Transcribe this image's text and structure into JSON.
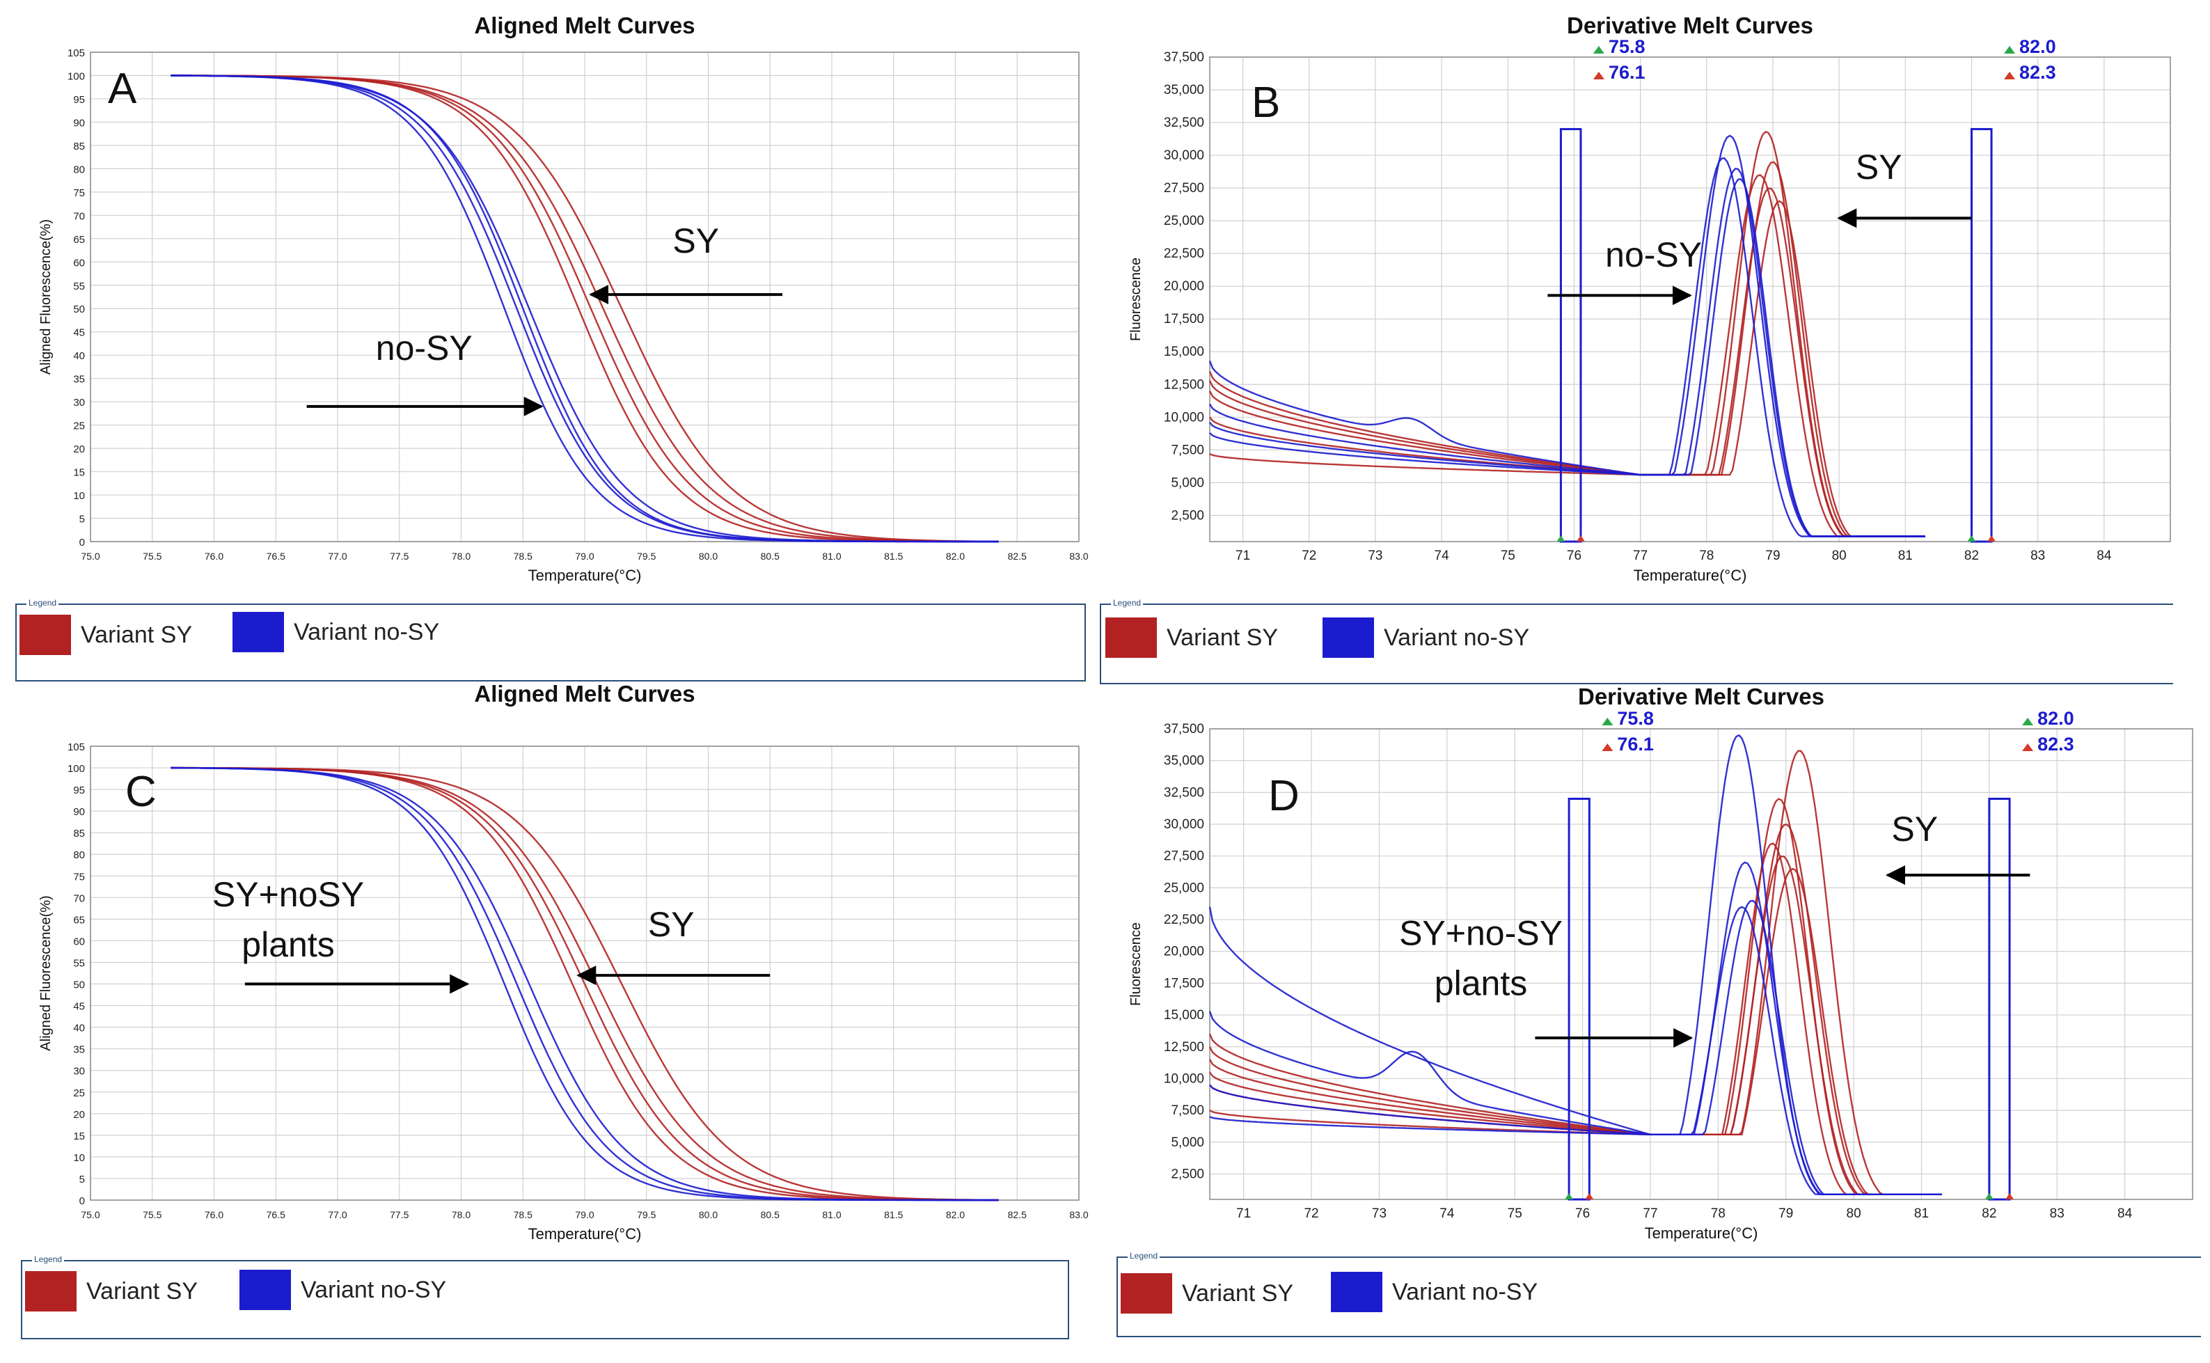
{
  "colors": {
    "sy": "#b22222",
    "nosy": "#1c1ccf",
    "arrow": "#000000",
    "grid": "#d0d0d0",
    "marker": "#1c1ccf",
    "legend_border": "#2a4f7a"
  },
  "legend": {
    "caption": "Legend",
    "sy_label": "Variant SY",
    "nosy_label": "Variant no-SY"
  },
  "chart_data": [
    {
      "id": "A",
      "type": "line",
      "title": "Aligned Melt Curves",
      "panel_letter": "A",
      "xlabel": "Temperature(°C)",
      "ylabel": "Aligned Fluorescence(%)",
      "xlim": [
        75,
        83
      ],
      "ylim": [
        0,
        105
      ],
      "xticks": [
        "75.0",
        "75.5",
        "76.0",
        "76.5",
        "77.0",
        "77.5",
        "78.0",
        "78.5",
        "79.0",
        "79.5",
        "80.0",
        "80.5",
        "81.0",
        "81.5",
        "82.0",
        "82.5",
        "83.0"
      ],
      "yticks": [
        "0",
        "5",
        "10",
        "15",
        "20",
        "25",
        "30",
        "35",
        "40",
        "45",
        "50",
        "55",
        "60",
        "65",
        "70",
        "75",
        "80",
        "85",
        "90",
        "95",
        "100",
        "105"
      ],
      "series": [
        {
          "name": "Variant SY",
          "group": "sy",
          "tm": 79.05,
          "k": 2.45
        },
        {
          "name": "Variant SY",
          "group": "sy",
          "tm": 79.15,
          "k": 2.35
        },
        {
          "name": "Variant SY",
          "group": "sy",
          "tm": 78.95,
          "k": 2.55
        },
        {
          "name": "Variant SY",
          "group": "sy",
          "tm": 79.3,
          "k": 2.3
        },
        {
          "name": "Variant no-SY",
          "group": "nosy",
          "tm": 78.45,
          "k": 2.7
        },
        {
          "name": "Variant no-SY",
          "group": "nosy",
          "tm": 78.55,
          "k": 2.6
        },
        {
          "name": "Variant no-SY",
          "group": "nosy",
          "tm": 78.35,
          "k": 2.8
        },
        {
          "name": "Variant no-SY",
          "group": "nosy",
          "tm": 78.5,
          "k": 2.75
        }
      ],
      "annotations": [
        {
          "lines": [
            "SY"
          ],
          "x": 79.9,
          "y": 62,
          "arrow": {
            "x1": 80.6,
            "y1": 53,
            "x2": 79.05,
            "y2": 53
          }
        },
        {
          "lines": [
            "no-SY"
          ],
          "x": 77.7,
          "y": 39,
          "arrow": {
            "x1": 76.75,
            "y1": 29,
            "x2": 78.65,
            "y2": 29
          }
        }
      ]
    },
    {
      "id": "B",
      "type": "line",
      "title": "Derivative Melt Curves",
      "panel_letter": "B",
      "xlabel": "Temperature(°C)",
      "ylabel": "Fluorescence",
      "xlim": [
        70.5,
        85
      ],
      "ylim": [
        500,
        37500
      ],
      "xticks": [
        "71",
        "72",
        "73",
        "74",
        "75",
        "76",
        "77",
        "78",
        "79",
        "80",
        "81",
        "82",
        "83",
        "84"
      ],
      "yticks": [
        "2,500",
        "5,000",
        "7,500",
        "10,000",
        "12,500",
        "15,000",
        "17,500",
        "20,000",
        "22,500",
        "25,000",
        "27,500",
        "30,000",
        "32,500",
        "35,000",
        "37,500"
      ],
      "markers": [
        {
          "green": "75.8",
          "red": "76.1",
          "x1": 75.8,
          "x2": 76.1
        },
        {
          "green": "82.0",
          "red": "82.3",
          "x1": 82.0,
          "x2": 82.3
        }
      ],
      "series": [
        {
          "name": "Variant SY",
          "group": "sy",
          "peak": 31800,
          "center": 78.9,
          "width": 0.62,
          "base": 13500
        },
        {
          "name": "Variant SY",
          "group": "sy",
          "peak": 29500,
          "center": 79.0,
          "width": 0.6,
          "base": 12800
        },
        {
          "name": "Variant SY",
          "group": "sy",
          "peak": 28500,
          "center": 78.8,
          "width": 0.63,
          "base": 12000
        },
        {
          "name": "Variant SY",
          "group": "sy",
          "peak": 26500,
          "center": 79.1,
          "width": 0.58,
          "base": 10000
        },
        {
          "name": "Variant SY",
          "group": "sy",
          "peak": 27500,
          "center": 78.95,
          "width": 0.6,
          "base": 7200
        },
        {
          "name": "Variant no-SY",
          "group": "nosy",
          "peak": 31500,
          "center": 78.35,
          "width": 0.64,
          "base": 14300,
          "bump": 11000
        },
        {
          "name": "Variant no-SY",
          "group": "nosy",
          "peak": 29800,
          "center": 78.25,
          "width": 0.62,
          "base": 11000
        },
        {
          "name": "Variant no-SY",
          "group": "nosy",
          "peak": 29000,
          "center": 78.45,
          "width": 0.6,
          "base": 9600
        },
        {
          "name": "Variant no-SY",
          "group": "nosy",
          "peak": 28200,
          "center": 78.5,
          "width": 0.58,
          "base": 8800
        }
      ],
      "annotations": [
        {
          "lines": [
            "SY"
          ],
          "x": 80.6,
          "y": 28200,
          "arrow": {
            "x1": 82.0,
            "y1": 25200,
            "x2": 80.0,
            "y2": 25200
          }
        },
        {
          "lines": [
            "no-SY"
          ],
          "x": 77.2,
          "y": 21500,
          "arrow": {
            "x1": 75.6,
            "y1": 19300,
            "x2": 77.75,
            "y2": 19300
          }
        }
      ]
    },
    {
      "id": "C",
      "type": "line",
      "title": "Aligned Melt Curves",
      "panel_letter": "C",
      "xlabel": "Temperature(°C)",
      "ylabel": "Aligned Fluorescence(%)",
      "xlim": [
        75,
        83
      ],
      "ylim": [
        0,
        105
      ],
      "xticks": [
        "75.0",
        "75.5",
        "76.0",
        "76.5",
        "77.0",
        "77.5",
        "78.0",
        "78.5",
        "79.0",
        "79.5",
        "80.0",
        "80.5",
        "81.0",
        "81.5",
        "82.0",
        "82.5",
        "83.0"
      ],
      "yticks": [
        "0",
        "5",
        "10",
        "15",
        "20",
        "25",
        "30",
        "35",
        "40",
        "45",
        "50",
        "55",
        "60",
        "65",
        "70",
        "75",
        "80",
        "85",
        "90",
        "95",
        "100",
        "105"
      ],
      "series": [
        {
          "name": "Variant SY",
          "group": "sy",
          "tm": 79.0,
          "k": 2.45
        },
        {
          "name": "Variant SY",
          "group": "sy",
          "tm": 79.1,
          "k": 2.35
        },
        {
          "name": "Variant SY",
          "group": "sy",
          "tm": 78.9,
          "k": 2.55
        },
        {
          "name": "Variant SY",
          "group": "sy",
          "tm": 79.3,
          "k": 2.3
        },
        {
          "name": "Variant no-SY",
          "group": "nosy",
          "tm": 78.45,
          "k": 2.7
        },
        {
          "name": "Variant no-SY",
          "group": "nosy",
          "tm": 78.55,
          "k": 2.6
        },
        {
          "name": "Variant no-SY",
          "group": "nosy",
          "tm": 78.35,
          "k": 2.8
        }
      ],
      "annotations": [
        {
          "lines": [
            "SY"
          ],
          "x": 79.7,
          "y": 61,
          "arrow": {
            "x1": 80.5,
            "y1": 52,
            "x2": 78.95,
            "y2": 52
          }
        },
        {
          "lines": [
            "SY+noSY",
            "plants"
          ],
          "x": 76.6,
          "y": 68,
          "arrow": {
            "x1": 76.25,
            "y1": 50,
            "x2": 78.05,
            "y2": 50
          }
        }
      ]
    },
    {
      "id": "D",
      "type": "line",
      "title": "Derivative Melt Curves",
      "panel_letter": "D",
      "xlabel": "Temperature(°C)",
      "ylabel": "Fluorescence",
      "xlim": [
        70.5,
        85
      ],
      "ylim": [
        500,
        37500
      ],
      "xticks": [
        "71",
        "72",
        "73",
        "74",
        "75",
        "76",
        "77",
        "78",
        "79",
        "80",
        "81",
        "82",
        "83",
        "84"
      ],
      "yticks": [
        "2,500",
        "5,000",
        "7,500",
        "10,000",
        "12,500",
        "15,000",
        "17,500",
        "20,000",
        "22,500",
        "25,000",
        "27,500",
        "30,000",
        "32,500",
        "35,000",
        "37,500"
      ],
      "markers": [
        {
          "green": "75.8",
          "red": "76.1",
          "x1": 75.8,
          "x2": 76.1
        },
        {
          "green": "82.0",
          "red": "82.3",
          "x1": 82.0,
          "x2": 82.3
        }
      ],
      "series": [
        {
          "name": "Variant SY",
          "group": "sy",
          "peak": 35800,
          "center": 79.2,
          "width": 0.63,
          "base": 13500
        },
        {
          "name": "Variant SY",
          "group": "sy",
          "peak": 32000,
          "center": 78.9,
          "width": 0.6,
          "base": 12500
        },
        {
          "name": "Variant SY",
          "group": "sy",
          "peak": 30000,
          "center": 79.0,
          "width": 0.62,
          "base": 11500
        },
        {
          "name": "Variant SY",
          "group": "sy",
          "peak": 28500,
          "center": 78.8,
          "width": 0.58,
          "base": 10500
        },
        {
          "name": "Variant SY",
          "group": "sy",
          "peak": 26500,
          "center": 79.1,
          "width": 0.6,
          "base": 9500
        },
        {
          "name": "Variant SY",
          "group": "sy",
          "peak": 27500,
          "center": 78.95,
          "width": 0.6,
          "base": 7500
        },
        {
          "name": "Variant no-SY",
          "group": "nosy",
          "peak": 37000,
          "center": 78.3,
          "width": 0.62,
          "base": 23500
        },
        {
          "name": "Variant no-SY",
          "group": "nosy",
          "peak": 27000,
          "center": 78.4,
          "width": 0.6,
          "base": 15300,
          "bump": 14700
        },
        {
          "name": "Variant no-SY",
          "group": "nosy",
          "peak": 24000,
          "center": 78.5,
          "width": 0.58,
          "base": 9500
        },
        {
          "name": "Variant no-SY",
          "group": "nosy",
          "peak": 23500,
          "center": 78.35,
          "width": 0.6,
          "base": 7000
        }
      ],
      "annotations": [
        {
          "lines": [
            "SY"
          ],
          "x": 80.9,
          "y": 28700,
          "arrow": {
            "x1": 82.6,
            "y1": 26000,
            "x2": 80.5,
            "y2": 26000
          }
        },
        {
          "lines": [
            "SY+no-SY",
            "plants"
          ],
          "x": 74.5,
          "y": 20500,
          "arrow": {
            "x1": 75.3,
            "y1": 13200,
            "x2": 77.6,
            "y2": 13200
          }
        }
      ]
    }
  ]
}
